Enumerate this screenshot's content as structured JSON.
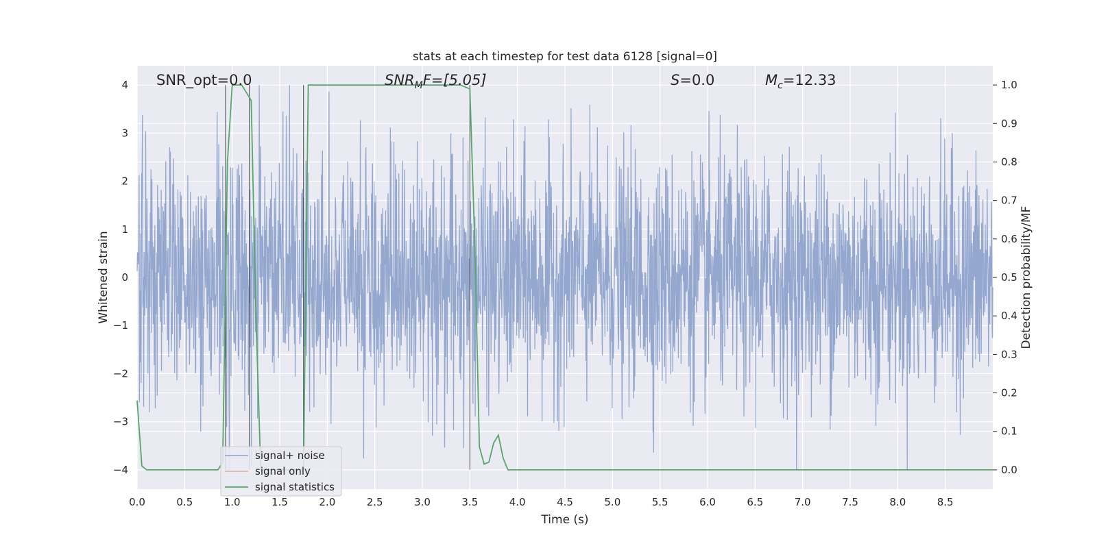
{
  "chart_data": {
    "type": "line",
    "title": "stats at each timestep for test data 6128 [signal=0]",
    "xlabel": "Time (s)",
    "ylabel_left": "Whitened strain",
    "ylabel_right": "Detection probability/MF",
    "xlim": [
      0.0,
      9.0
    ],
    "ylim_left": [
      -4.4,
      4.4
    ],
    "ylim_right": [
      -0.05,
      1.05
    ],
    "x_ticks": [
      "0.0",
      "0.5",
      "1.0",
      "1.5",
      "2.0",
      "2.5",
      "3.0",
      "3.5",
      "4.0",
      "4.5",
      "5.0",
      "5.5",
      "6.0",
      "6.5",
      "7.0",
      "7.5",
      "8.0",
      "8.5"
    ],
    "y_ticks_left": [
      "4",
      "3",
      "2",
      "1",
      "0",
      "−1",
      "−2",
      "−3",
      "−4"
    ],
    "y_ticks_right": [
      "1.0",
      "0.9",
      "0.8",
      "0.7",
      "0.6",
      "0.5",
      "0.4",
      "0.3",
      "0.2",
      "0.1",
      "0.0"
    ],
    "grid": true,
    "legend_position": "lower-left",
    "annotations": {
      "snr_opt": "SNR_opt=0.0",
      "snr_mf_main": "SNR",
      "snr_mf_sub": "M",
      "snr_mf_rest": "F=[5.05]",
      "s_main": "S",
      "s_rest": "=0.0",
      "mc_main": "M",
      "mc_sub": "c",
      "mc_rest": "=12.33"
    },
    "series": [
      {
        "name": "signal+ noise",
        "color": "#8ea3cc",
        "description_values": "whitened noise, amplitude approx within [-4, 4]",
        "amplitude_envelope": 2.2
      },
      {
        "name": "signal only",
        "color": "#dd8452",
        "values": []
      },
      {
        "name": "signal statistics",
        "color": "#55a868",
        "axis": "right",
        "x": [
          0.0,
          0.05,
          0.1,
          0.15,
          0.85,
          0.9,
          0.95,
          1.0,
          1.05,
          1.1,
          1.15,
          1.2,
          1.25,
          1.3,
          1.35,
          1.4,
          1.45,
          1.5,
          1.55,
          1.6,
          1.65,
          1.7,
          1.75,
          1.8,
          1.85,
          2.4,
          3.4,
          3.5,
          3.55,
          3.6,
          3.65,
          3.7,
          3.75,
          3.8,
          3.85,
          3.9,
          3.95,
          4.0,
          9.0
        ],
        "values": [
          0.18,
          0.01,
          0.0,
          0.0,
          0.0,
          0.02,
          0.8,
          1.0,
          1.0,
          1.0,
          0.98,
          0.96,
          0.4,
          0.0,
          0.0,
          0.0,
          0.0,
          0.0,
          0.0,
          0.0,
          0.0,
          0.0,
          0.0,
          1.0,
          1.0,
          1.0,
          1.0,
          0.99,
          0.6,
          0.06,
          0.015,
          0.02,
          0.07,
          0.09,
          0.03,
          0.0,
          0.0,
          0.0,
          0.0
        ]
      }
    ],
    "vertical_lines_x": [
      0.93,
      1.18,
      1.75,
      3.5
    ]
  }
}
